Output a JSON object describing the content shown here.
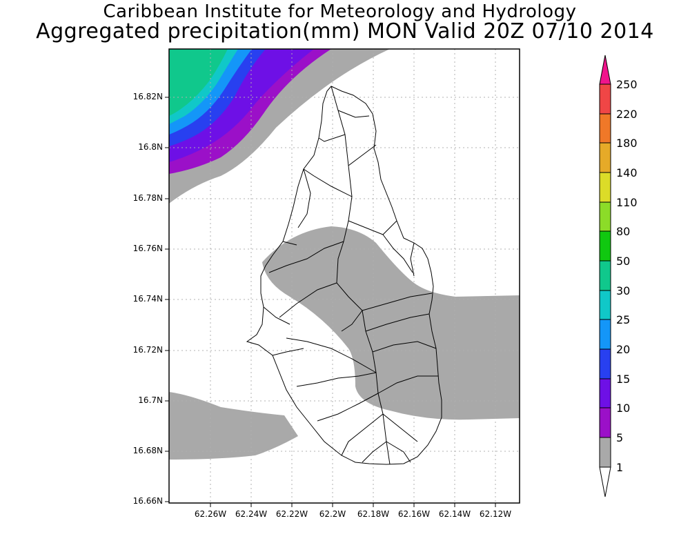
{
  "title_line1": "Caribbean Institute for Meteorology and Hydrology",
  "title_line2": "Aggregated precipitation(mm) MON Valid 20Z 07/10 2014",
  "y_axis_labels": [
    "16.82N",
    "16.8N",
    "16.78N",
    "16.76N",
    "16.74N",
    "16.72N",
    "16.7N",
    "16.68N",
    "16.66N"
  ],
  "x_axis_labels": [
    "62.26W",
    "62.24W",
    "62.22W",
    "62.2W",
    "62.18W",
    "62.16W",
    "62.14W",
    "62.12W"
  ],
  "colorbar": {
    "labels": [
      "1",
      "5",
      "10",
      "15",
      "20",
      "25",
      "30",
      "50",
      "80",
      "110",
      "140",
      "180",
      "220",
      "250"
    ],
    "colors": {
      "1-5": "#a9a9a9",
      "5-10": "#9b10c8",
      "10-15": "#6e10e6",
      "15-20": "#2840f0",
      "20-25": "#1496f8",
      "25-30": "#10c8c8",
      "30-50": "#10c88c",
      "50-80": "#10c810",
      "80-110": "#8cdc28",
      "110-140": "#dcdc28",
      "140-180": "#e6aa28",
      "180-220": "#f07828",
      "220-250": "#f04646",
      "250+": "#f0148c"
    }
  }
}
